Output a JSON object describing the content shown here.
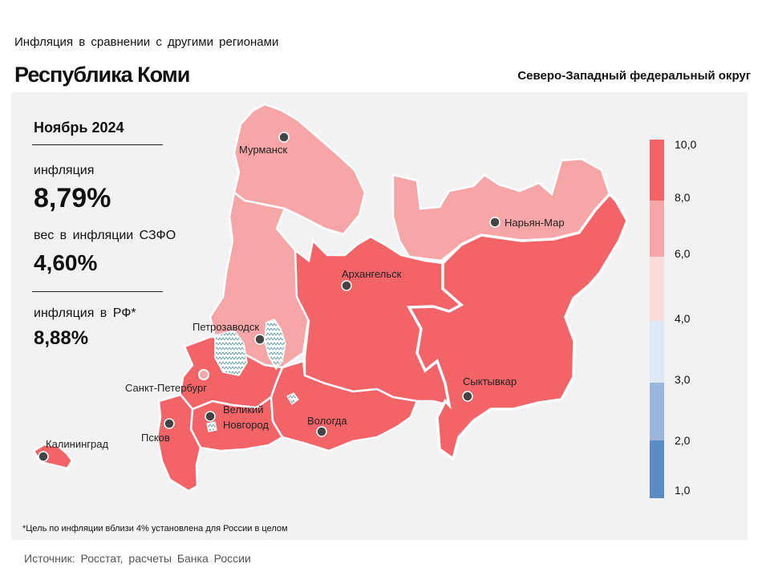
{
  "header": {
    "subtitle": "Инфляция в сравнении с другими регионами",
    "title": "Республика Коми",
    "district": "Северо-Западный федеральный округ"
  },
  "stats": {
    "period": "Ноябрь 2024",
    "inflation_label": "инфляция",
    "inflation_value": "8,79%",
    "weight_label": "вес в инфляции СЗФО",
    "weight_value": "4,60%",
    "rf_label": "инфляция в РФ*",
    "rf_value": "8,88%"
  },
  "cities": {
    "murmansk": "Мурманск",
    "naryan_mar": "Нарьян-Мар",
    "arkhangelsk": "Архангельск",
    "petrozavodsk": "Петрозаводск",
    "spb": "Санкт-Петербург",
    "novgorod_1": "Великий",
    "novgorod_2": "Новгород",
    "vologda": "Вологда",
    "syktyvkar": "Сыктывкар",
    "pskov": "Псков",
    "kaliningrad": "Калининград"
  },
  "legend": {
    "labels": [
      "10,0",
      "8,0",
      "6,0",
      "4,0",
      "3,0",
      "2,0",
      "1,0"
    ],
    "colors": [
      "#f26467",
      "#f7a6a7",
      "#fbdcdc",
      "#dde7f5",
      "#9ab6dc",
      "#5b8cc6"
    ]
  },
  "colors": {
    "high": "#f26467",
    "mid": "#f7a6a7",
    "panel": "#f2f2f2"
  },
  "footnote": "*Цель по инфляции вблизи 4% установлена для России в целом",
  "source": "Источник: Росстат, расчеты Банка России"
}
